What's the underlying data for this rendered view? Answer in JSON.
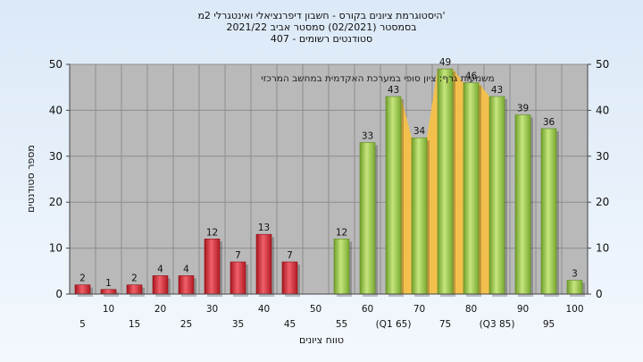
{
  "chart_data": {
    "type": "bar",
    "title_lines": [
      "'היסטוגרמת ציונים בקורס - חשבון דיפרנציאלי ואינטגרלי 2מ",
      "בסמסטר  (02/2021)  סמסטר אביב 2021/22",
      "סטודנטים רשומים - 407"
    ],
    "xlabel": "טווח ציונים",
    "ylabel": "מספר סטודנטים",
    "annotation": "משמעות גרף:  ציון סופי במערכת האקדמית במחשב המרכזי",
    "ylim": [
      0,
      50
    ],
    "y_ticks": [
      0,
      10,
      20,
      30,
      40,
      50
    ],
    "categories": [
      "5",
      "10",
      "15",
      "20",
      "25",
      "30",
      "35",
      "40",
      "45",
      "50",
      "55",
      "60",
      "65",
      "70",
      "75",
      "80",
      "85",
      "90",
      "95",
      "100"
    ],
    "x_tick_labels": [
      "5",
      "10",
      "15",
      "20",
      "25",
      "30",
      "35",
      "40",
      "45",
      "50",
      "55",
      "60",
      "(Q1 65)",
      "70",
      "75",
      "80",
      "(Q3 85)",
      "90",
      "95",
      "100"
    ],
    "values": [
      2,
      1,
      2,
      4,
      4,
      12,
      7,
      13,
      7,
      null,
      12,
      33,
      43,
      34,
      49,
      46,
      43,
      39,
      36,
      3
    ],
    "value_labels": [
      "2",
      "1",
      "2",
      "4",
      "4",
      "12",
      "7",
      "13",
      "7",
      "",
      "12",
      "33",
      "43",
      "34",
      "49",
      "46",
      "43",
      "39",
      "36",
      "3"
    ],
    "colors": {
      "fail": "#d8232b",
      "pass": "#8cc63e",
      "band": "#f5c048",
      "plot_bg": "#b9b9b9"
    },
    "iqr_band": {
      "from": "65",
      "to": "85"
    },
    "grid": true,
    "legend": "none"
  }
}
